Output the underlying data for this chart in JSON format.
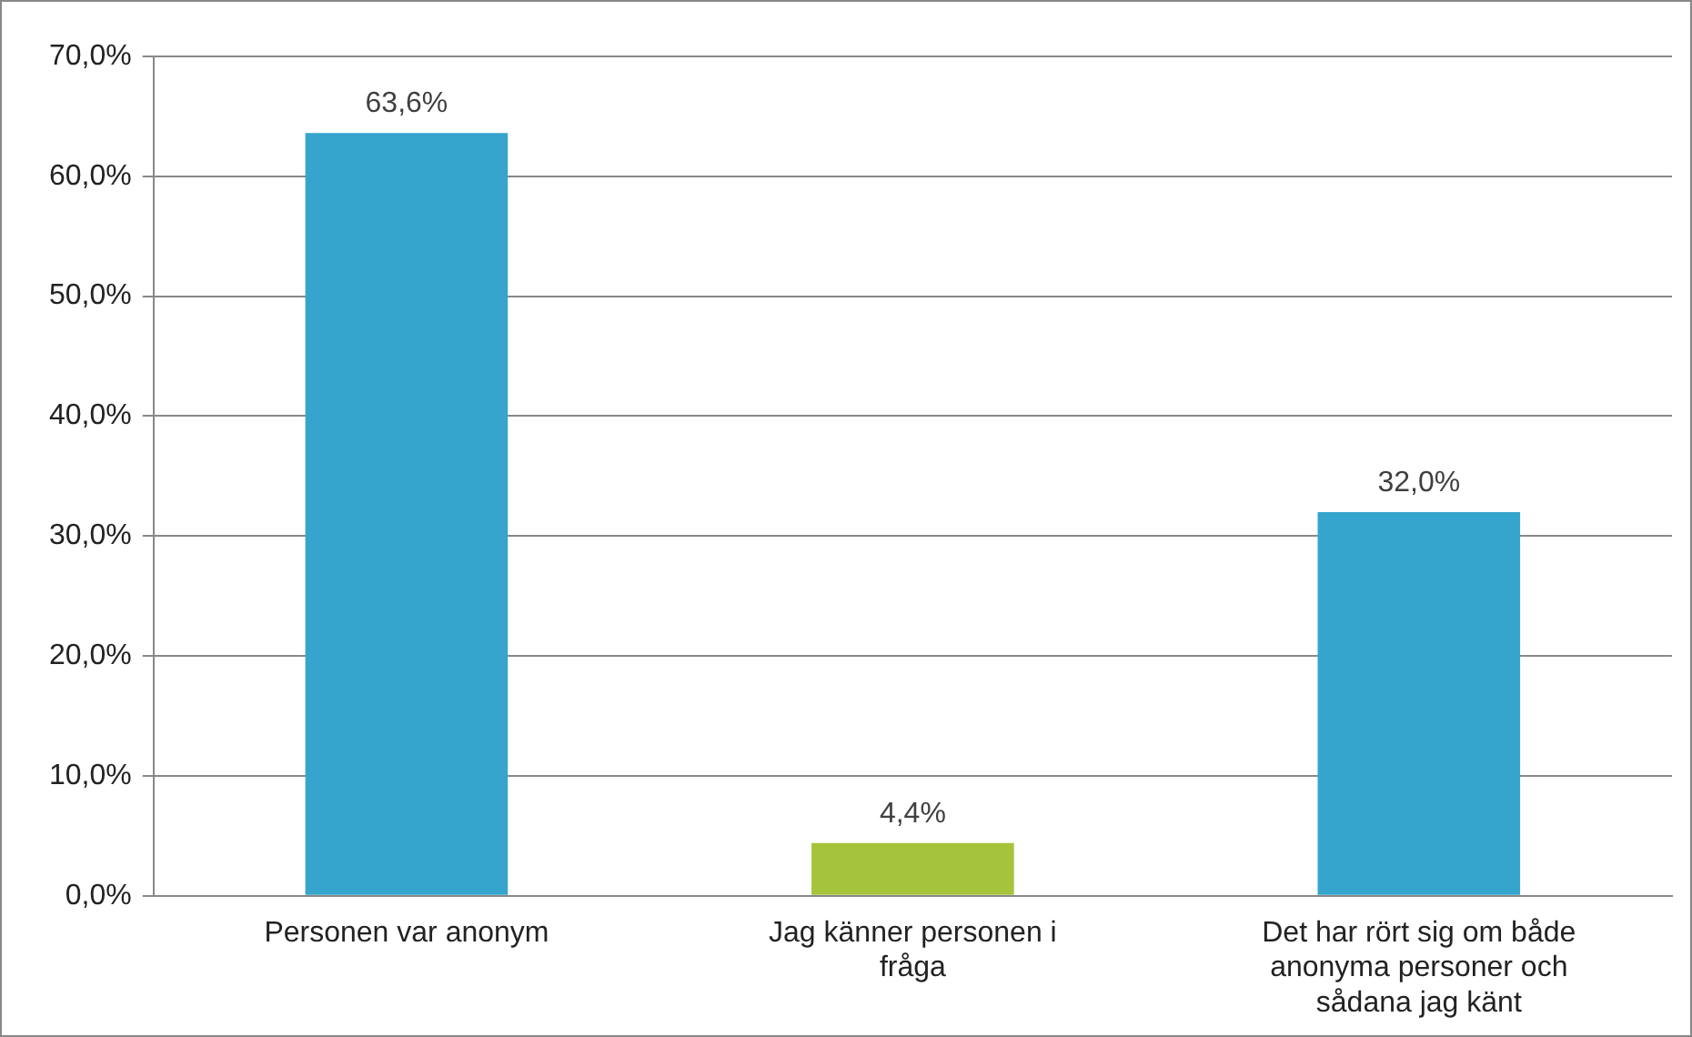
{
  "chart_data": {
    "type": "bar",
    "categories": [
      "Personen var anonym",
      "Jag känner personen i fråga",
      "Det har rört sig om både anonyma personer och sådana jag känt"
    ],
    "values": [
      63.6,
      4.4,
      32.0
    ],
    "colors": [
      "#35a5cd",
      "#a5c33b",
      "#35a5cd"
    ],
    "value_labels": [
      "63,6%",
      "4,4%",
      "32,0%"
    ],
    "ylim": [
      0,
      70
    ],
    "yticks": [
      {
        "value": 0,
        "label": "0,0%"
      },
      {
        "value": 10,
        "label": "10,0%"
      },
      {
        "value": 20,
        "label": "20,0%"
      },
      {
        "value": 30,
        "label": "30,0%"
      },
      {
        "value": 40,
        "label": "40,0%"
      },
      {
        "value": 50,
        "label": "50,0%"
      },
      {
        "value": 60,
        "label": "60,0%"
      },
      {
        "value": 70,
        "label": "70,0%"
      }
    ],
    "grid": "y",
    "legend": false
  }
}
